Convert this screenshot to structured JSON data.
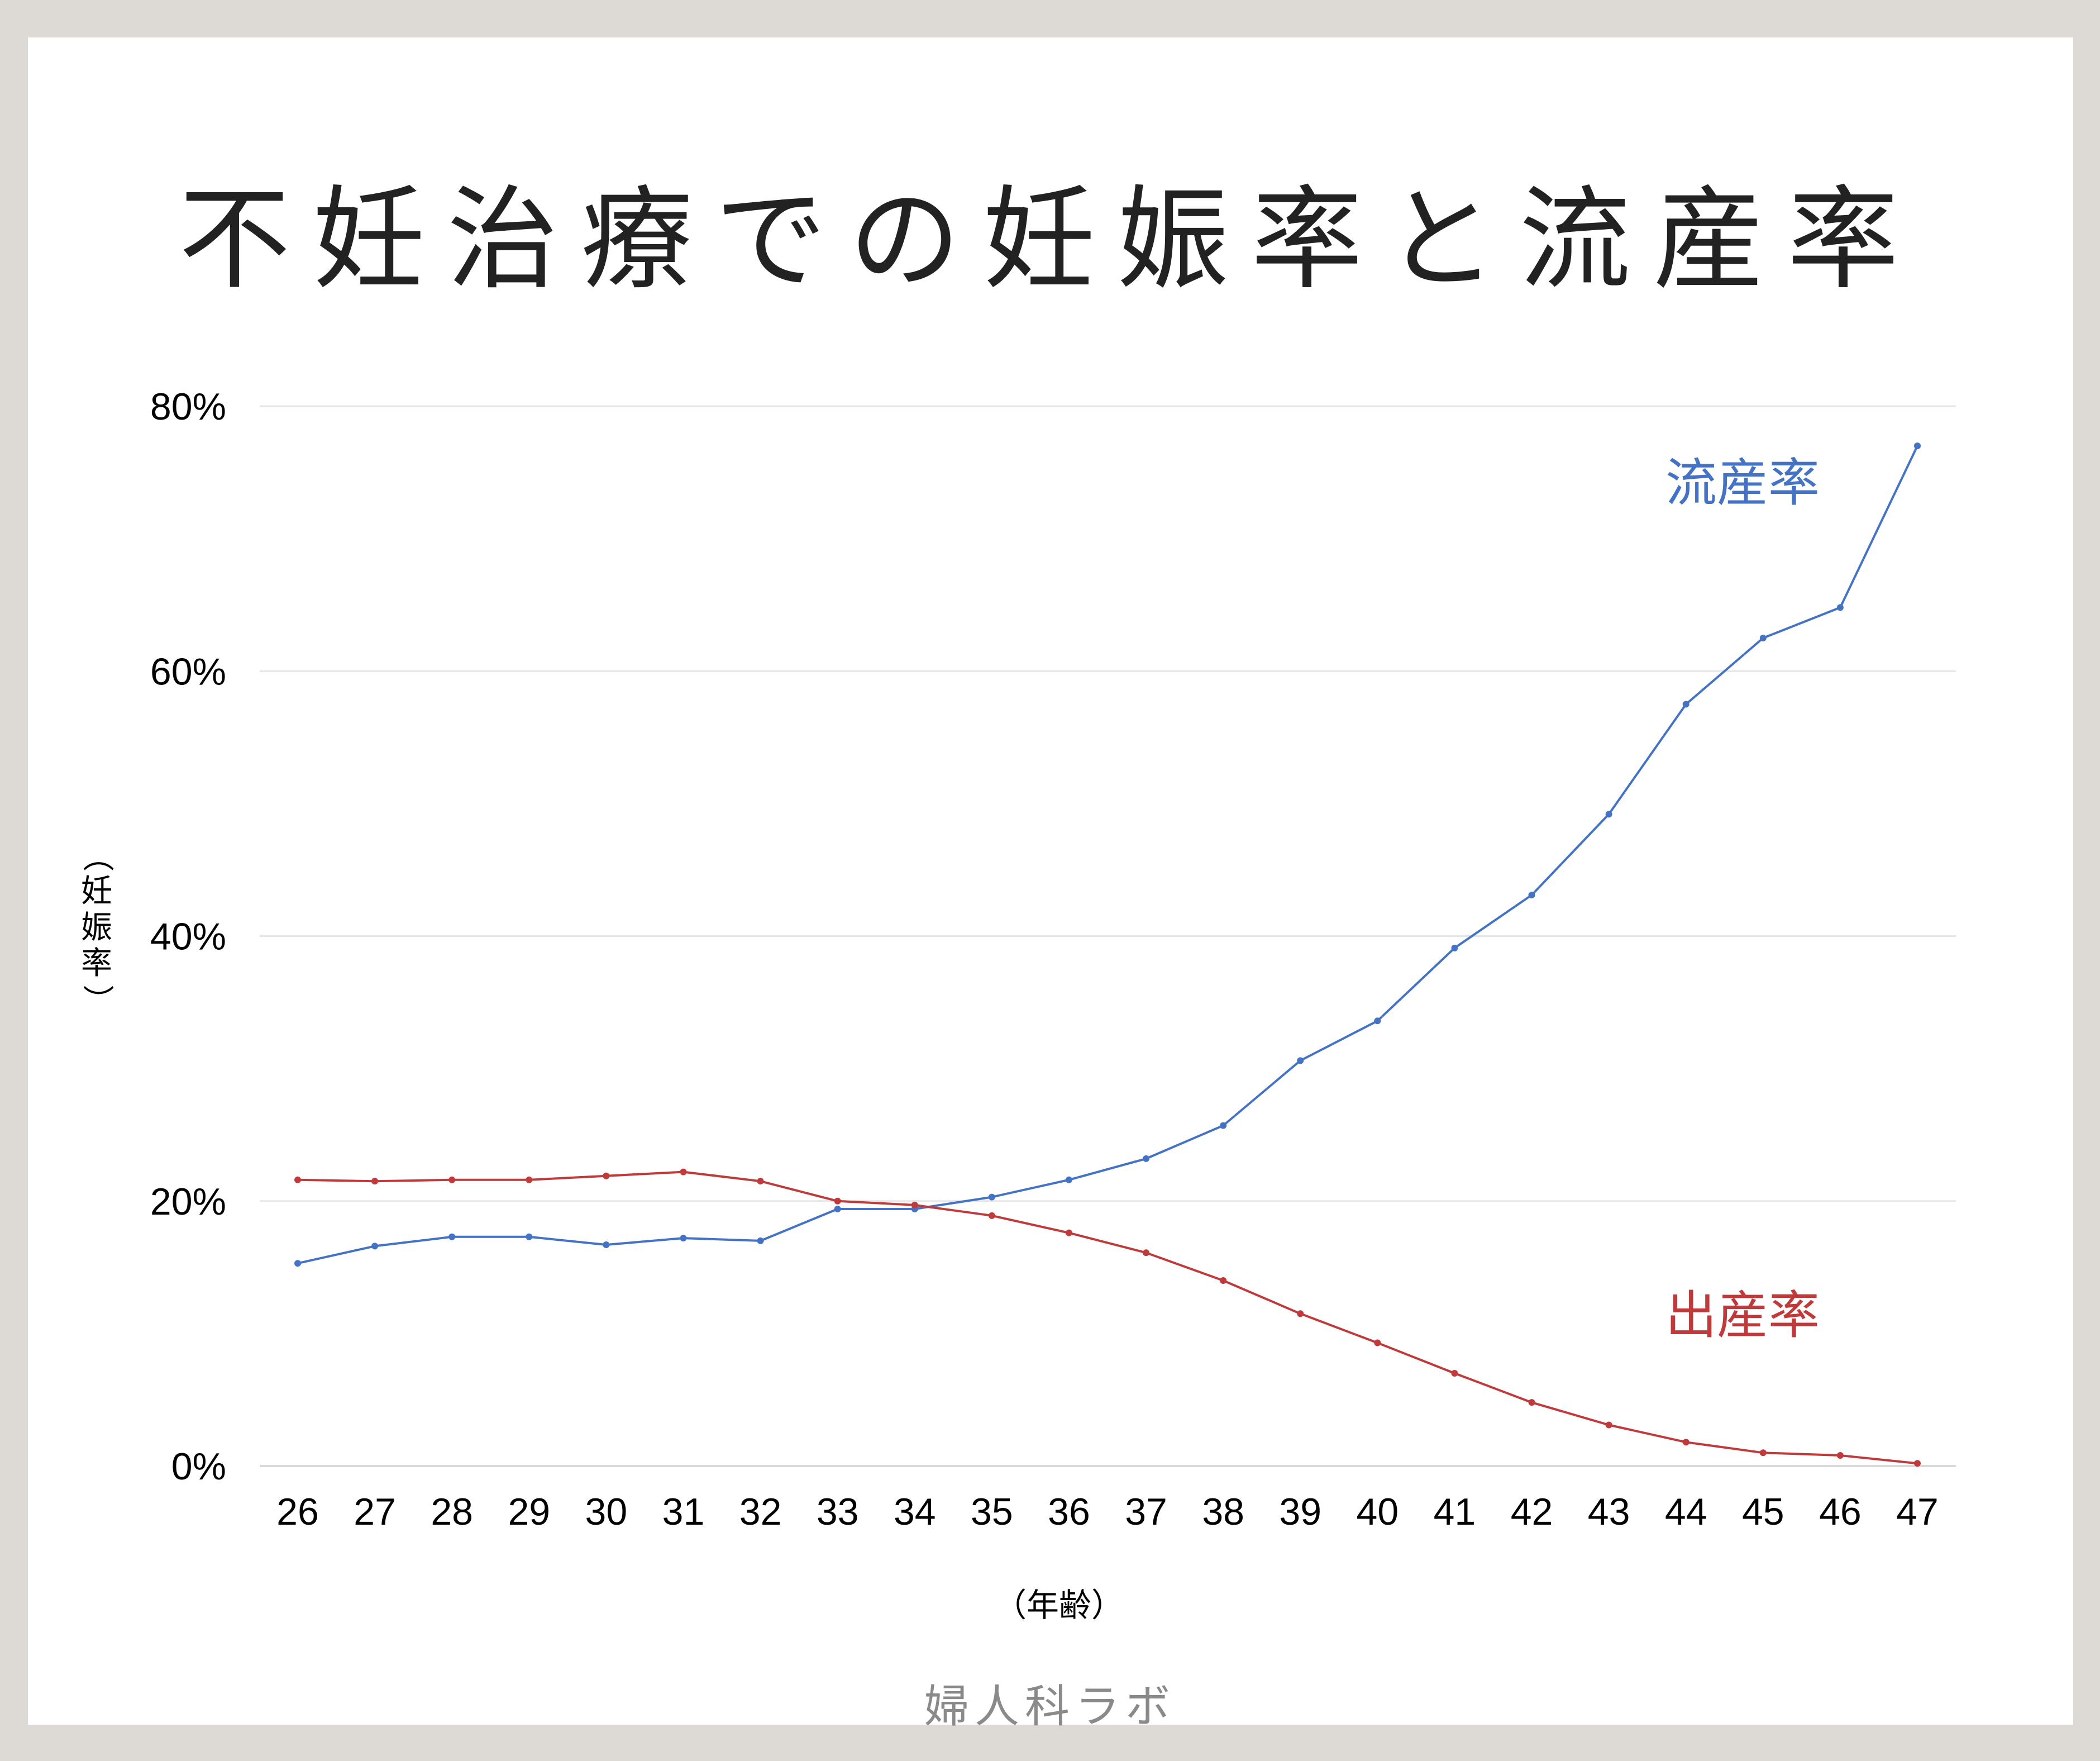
{
  "title": "不妊治療での妊娠率と流産率",
  "footer": "婦人科ラボ",
  "y_axis_label": {
    "open_paren": "（",
    "chars": [
      "妊",
      "娠",
      "率"
    ],
    "close_paren": "）"
  },
  "x_axis_label": "（年齢）",
  "series_labels": {
    "miscarriage": "流産率",
    "birth": "出産率"
  },
  "colors": {
    "miscarriage": "#4472c4",
    "birth": "#c0393b",
    "grid": "#e6e6e6"
  },
  "chart_data": {
    "type": "line",
    "title": "不妊治療での妊娠率と流産率",
    "xlabel": "（年齢）",
    "ylabel": "（妊娠率）",
    "x": [
      26,
      27,
      28,
      29,
      30,
      31,
      32,
      33,
      34,
      35,
      36,
      37,
      38,
      39,
      40,
      41,
      42,
      43,
      44,
      45,
      46,
      47
    ],
    "ylim": [
      0,
      80
    ],
    "yticks": [
      "0%",
      "20%",
      "40%",
      "60%",
      "80%"
    ],
    "ytick_values": [
      0,
      20,
      40,
      60,
      80
    ],
    "grid": true,
    "series": [
      {
        "name": "流産率",
        "color": "#4472c4",
        "values": [
          15.3,
          16.6,
          17.3,
          17.3,
          16.7,
          17.2,
          17.0,
          19.4,
          19.4,
          20.3,
          21.6,
          23.2,
          25.7,
          30.6,
          33.6,
          39.1,
          43.1,
          49.2,
          57.5,
          62.5,
          64.8,
          77.0
        ]
      },
      {
        "name": "出産率",
        "color": "#c0393b",
        "values": [
          21.6,
          21.5,
          21.6,
          21.6,
          21.9,
          22.2,
          21.5,
          20.0,
          19.7,
          18.9,
          17.6,
          16.1,
          14.0,
          11.5,
          9.3,
          7.0,
          4.8,
          3.1,
          1.8,
          1.0,
          0.8,
          0.2
        ]
      }
    ]
  }
}
